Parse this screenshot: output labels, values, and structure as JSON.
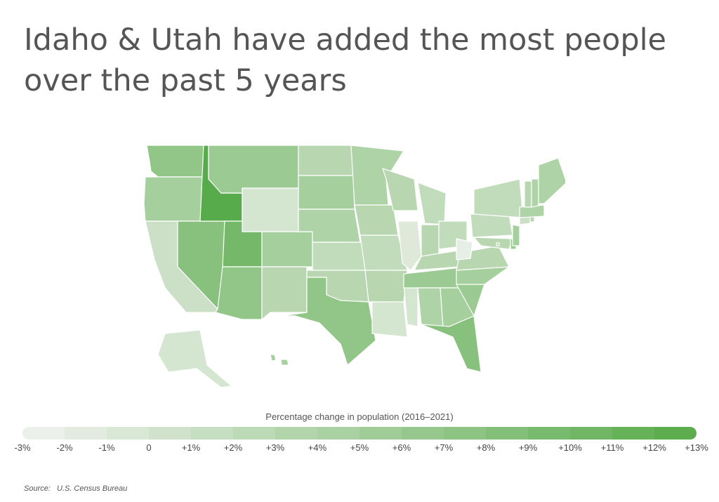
{
  "title": "Idaho & Utah have added the most people over the past 5 years",
  "legend": {
    "title": "Percentage change in population (2016–2021)",
    "labels": [
      "-3%",
      "-2%",
      "-1%",
      "0",
      "+1%",
      "+2%",
      "+3%",
      "+4%",
      "+5%",
      "+6%",
      "+7%",
      "+8%",
      "+9%",
      "+10%",
      "+11%",
      "+12%",
      "+13%"
    ],
    "min": -3,
    "max": 13,
    "color_low": "#f1f2ef",
    "color_high": "#58ab4a"
  },
  "source": {
    "label": "Source:",
    "value": "U.S. Census Bureau"
  },
  "map_data": {
    "type": "choropleth",
    "region": "United States",
    "metric": "Percentage change in population (2016–2021)",
    "values": {
      "WA": 7,
      "OR": 5,
      "CA": 1,
      "NV": 8,
      "ID": 13,
      "MT": 6,
      "WY": 0,
      "UT": 10,
      "AZ": 7,
      "CO": 5,
      "NM": 3,
      "ND": 3,
      "SD": 5,
      "NE": 4,
      "KS": 2,
      "OK": 3,
      "TX": 7,
      "MN": 4,
      "IA": 3,
      "MO": 2,
      "AR": 3,
      "LA": 0,
      "WI": 3,
      "IL": -1,
      "MS": 0,
      "MI": 2,
      "IN": 3,
      "KY": 3,
      "TN": 6,
      "AL": 4,
      "OH": 2,
      "WV": -2,
      "GA": 5,
      "FL": 8,
      "SC": 6,
      "NC": 5,
      "VA": 3,
      "PA": 2,
      "NY": 2,
      "VT": 3,
      "NH": 4,
      "ME": 4,
      "MA": 4,
      "RI": 3,
      "CT": 1,
      "NJ": 5,
      "DE": 6,
      "MD": 3,
      "DC": 3,
      "AK": 0,
      "HI": 5
    }
  }
}
